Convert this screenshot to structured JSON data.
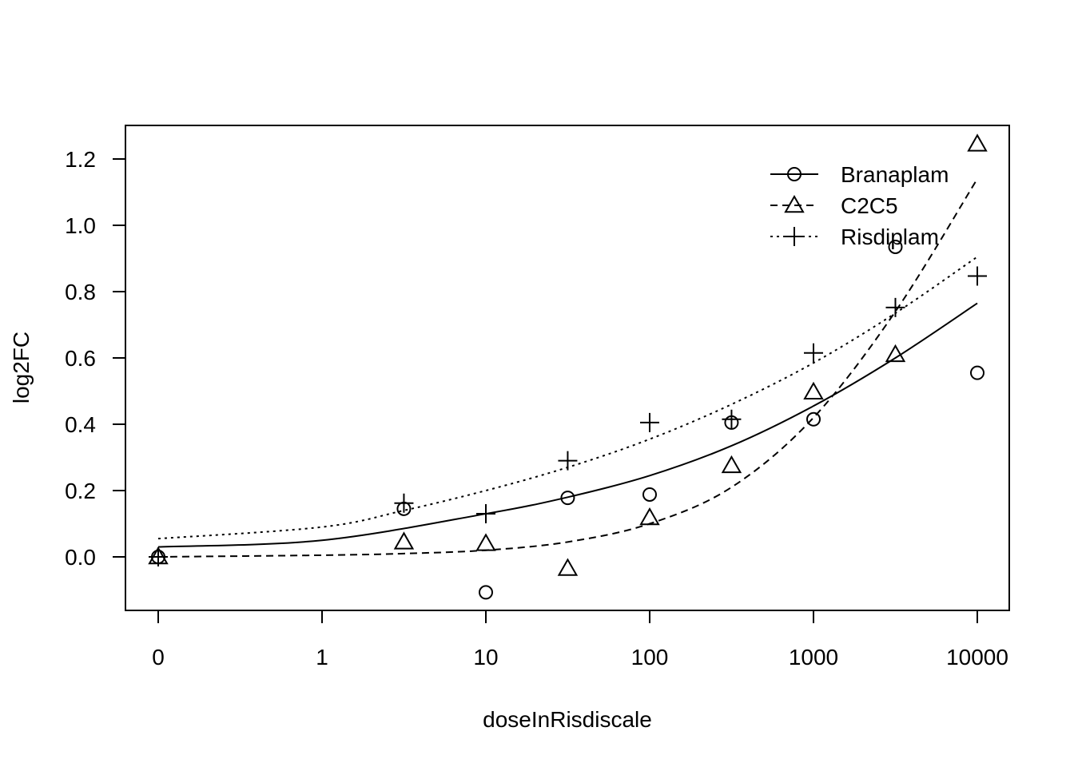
{
  "chart_data": {
    "type": "scatter",
    "title": "",
    "xlabel": "doseInRisdiscale",
    "ylabel": "log2FC",
    "x_scale": "log10-with-zero",
    "x_ticks": [
      "0",
      "1",
      "10",
      "100",
      "1000",
      "10000"
    ],
    "y_ticks": [
      "0.0",
      "0.2",
      "0.4",
      "0.6",
      "0.8",
      "1.0",
      "1.2"
    ],
    "ylim": [
      -0.16,
      1.3
    ],
    "grid": false,
    "legend_position": "top-right",
    "series": [
      {
        "name": "Branaplam",
        "marker": "circle",
        "line": "solid",
        "points": [
          {
            "x": 0,
            "y": 0.0
          },
          {
            "x": 3.16,
            "y": 0.145
          },
          {
            "x": 10,
            "y": -0.107
          },
          {
            "x": 31.6,
            "y": 0.178
          },
          {
            "x": 100,
            "y": 0.188
          },
          {
            "x": 316,
            "y": 0.405
          },
          {
            "x": 1000,
            "y": 0.415
          },
          {
            "x": 3162,
            "y": 0.935
          },
          {
            "x": 10000,
            "y": 0.555
          }
        ],
        "fit": [
          {
            "x": 0,
            "y": 0.03
          },
          {
            "x": 1,
            "y": 0.05
          },
          {
            "x": 10,
            "y": 0.13
          },
          {
            "x": 31.6,
            "y": 0.18
          },
          {
            "x": 100,
            "y": 0.245
          },
          {
            "x": 316,
            "y": 0.335
          },
          {
            "x": 1000,
            "y": 0.455
          },
          {
            "x": 3162,
            "y": 0.6
          },
          {
            "x": 10000,
            "y": 0.765
          }
        ]
      },
      {
        "name": "C2C5",
        "marker": "triangle",
        "line": "dashed",
        "points": [
          {
            "x": 0,
            "y": 0.0
          },
          {
            "x": 3.16,
            "y": 0.045
          },
          {
            "x": 10,
            "y": 0.04
          },
          {
            "x": 31.6,
            "y": -0.035
          },
          {
            "x": 100,
            "y": 0.118
          },
          {
            "x": 316,
            "y": 0.275
          },
          {
            "x": 1000,
            "y": 0.497
          },
          {
            "x": 3162,
            "y": 0.61
          },
          {
            "x": 10000,
            "y": 1.245
          }
        ],
        "fit": [
          {
            "x": 0,
            "y": 0.0
          },
          {
            "x": 1,
            "y": 0.005
          },
          {
            "x": 3.16,
            "y": 0.01
          },
          {
            "x": 10,
            "y": 0.02
          },
          {
            "x": 31.6,
            "y": 0.045
          },
          {
            "x": 100,
            "y": 0.1
          },
          {
            "x": 316,
            "y": 0.21
          },
          {
            "x": 1000,
            "y": 0.42
          },
          {
            "x": 3162,
            "y": 0.74
          },
          {
            "x": 10000,
            "y": 1.14
          }
        ]
      },
      {
        "name": "Risdiplam",
        "marker": "plus",
        "line": "dotted",
        "points": [
          {
            "x": 0,
            "y": 0.0
          },
          {
            "x": 3.16,
            "y": 0.162
          },
          {
            "x": 10,
            "y": 0.13
          },
          {
            "x": 31.6,
            "y": 0.29
          },
          {
            "x": 100,
            "y": 0.405
          },
          {
            "x": 316,
            "y": 0.415
          },
          {
            "x": 1000,
            "y": 0.615
          },
          {
            "x": 3162,
            "y": 0.752
          },
          {
            "x": 10000,
            "y": 0.847
          }
        ],
        "fit": [
          {
            "x": 0,
            "y": 0.055
          },
          {
            "x": 1,
            "y": 0.09
          },
          {
            "x": 3.16,
            "y": 0.14
          },
          {
            "x": 10,
            "y": 0.2
          },
          {
            "x": 31.6,
            "y": 0.27
          },
          {
            "x": 100,
            "y": 0.355
          },
          {
            "x": 316,
            "y": 0.46
          },
          {
            "x": 1000,
            "y": 0.585
          },
          {
            "x": 3162,
            "y": 0.735
          },
          {
            "x": 10000,
            "y": 0.905
          }
        ]
      }
    ]
  }
}
